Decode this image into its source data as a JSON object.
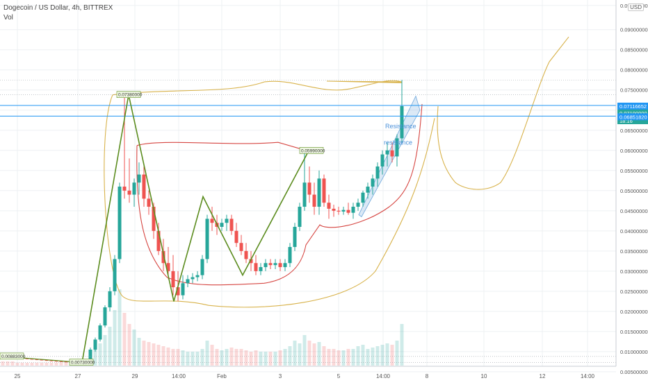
{
  "header": {
    "title": "Dogecoin / US Dollar, 4h, BITTREX",
    "volume_label": "Vol",
    "unit_button": "USD"
  },
  "chart_data": {
    "type": "candlestick",
    "title": "Dogecoin / US Dollar, 4h, BITTREX",
    "volume_label": "Vol",
    "price_range": [
      0.0055,
      0.0965
    ],
    "price_ticks": [
      "0.09600000",
      "0.09000000",
      "0.08500000",
      "0.08000000",
      "0.07500000",
      "0.07000000",
      "0.06500000",
      "0.06000000",
      "0.05500000",
      "0.05000000",
      "0.04500000",
      "0.04000000",
      "0.03500000",
      "0.03000000",
      "0.02500000",
      "0.02000000",
      "0.01500000",
      "0.01000000",
      "0.00500000"
    ],
    "time_ticks": [
      "25",
      "27",
      "29",
      "14:00",
      "Feb",
      "3",
      "5",
      "14:00",
      "8",
      "10",
      "12",
      "14:00"
    ],
    "grid": true,
    "horizontal_lines": [
      {
        "value": 0.07116652,
        "label": "0.07116652",
        "color": "#2196f3"
      },
      {
        "value": 0.0685182,
        "label": "0.06851820",
        "color": "#2196f3"
      }
    ],
    "price_labels": [
      {
        "text": "0.07116652",
        "color": "#2196f3"
      },
      {
        "text": "0.07100000",
        "color": "#26a69a"
      },
      {
        "text": "18:16",
        "color": "#26a69a"
      },
      {
        "text": "0.06851820",
        "color": "#2196f3"
      }
    ],
    "chart_annotations": [
      {
        "text": "0.00883000",
        "value": 0.00883
      },
      {
        "text": "0.00730000",
        "value": 0.0073
      },
      {
        "text": "0.07380000",
        "value": 0.0738
      },
      {
        "text": "0.05990000",
        "value": 0.0599
      }
    ],
    "channel_labels": [
      "Resistance",
      "resistance"
    ],
    "colors": {
      "up": "#26a69a",
      "down": "#ef5350",
      "zigzag": "#5b8c1e",
      "outer_curve": "#d8b24a",
      "inner_curve": "#d64541",
      "channel": "#6fa8dc"
    },
    "candles": [
      {
        "o": 0.0088,
        "h": 0.0089,
        "l": 0.0086,
        "c": 0.0087
      },
      {
        "o": 0.0087,
        "h": 0.0088,
        "l": 0.0085,
        "c": 0.0086
      },
      {
        "o": 0.0086,
        "h": 0.0087,
        "l": 0.0084,
        "c": 0.0085
      },
      {
        "o": 0.0085,
        "h": 0.0086,
        "l": 0.0083,
        "c": 0.0084
      },
      {
        "o": 0.0084,
        "h": 0.0085,
        "l": 0.0082,
        "c": 0.0083
      },
      {
        "o": 0.0083,
        "h": 0.0084,
        "l": 0.0081,
        "c": 0.0082
      },
      {
        "o": 0.0082,
        "h": 0.0083,
        "l": 0.008,
        "c": 0.0081
      },
      {
        "o": 0.0081,
        "h": 0.0082,
        "l": 0.0079,
        "c": 0.008
      },
      {
        "o": 0.008,
        "h": 0.0081,
        "l": 0.0078,
        "c": 0.0079
      },
      {
        "o": 0.0079,
        "h": 0.008,
        "l": 0.0077,
        "c": 0.0078
      },
      {
        "o": 0.0078,
        "h": 0.0079,
        "l": 0.0076,
        "c": 0.0077
      },
      {
        "o": 0.0077,
        "h": 0.0078,
        "l": 0.0075,
        "c": 0.0076
      },
      {
        "o": 0.0076,
        "h": 0.0077,
        "l": 0.0074,
        "c": 0.0075
      },
      {
        "o": 0.0075,
        "h": 0.0076,
        "l": 0.0073,
        "c": 0.0074
      },
      {
        "o": 0.0074,
        "h": 0.0075,
        "l": 0.0073,
        "c": 0.0074
      },
      {
        "o": 0.0074,
        "h": 0.0076,
        "l": 0.0073,
        "c": 0.0075
      },
      {
        "o": 0.0075,
        "h": 0.0078,
        "l": 0.0074,
        "c": 0.0077
      },
      {
        "o": 0.0077,
        "h": 0.008,
        "l": 0.0076,
        "c": 0.0079
      },
      {
        "o": 0.0079,
        "h": 0.011,
        "l": 0.0078,
        "c": 0.0105
      },
      {
        "o": 0.0105,
        "h": 0.0135,
        "l": 0.01,
        "c": 0.013
      },
      {
        "o": 0.013,
        "h": 0.017,
        "l": 0.0125,
        "c": 0.0165
      },
      {
        "o": 0.0165,
        "h": 0.0215,
        "l": 0.016,
        "c": 0.021
      },
      {
        "o": 0.021,
        "h": 0.026,
        "l": 0.02,
        "c": 0.025
      },
      {
        "o": 0.025,
        "h": 0.034,
        "l": 0.024,
        "c": 0.033
      },
      {
        "o": 0.033,
        "h": 0.052,
        "l": 0.032,
        "c": 0.051
      },
      {
        "o": 0.051,
        "h": 0.0738,
        "l": 0.048,
        "c": 0.05
      },
      {
        "o": 0.05,
        "h": 0.058,
        "l": 0.047,
        "c": 0.049
      },
      {
        "o": 0.049,
        "h": 0.053,
        "l": 0.046,
        "c": 0.052
      },
      {
        "o": 0.052,
        "h": 0.057,
        "l": 0.049,
        "c": 0.054
      },
      {
        "o": 0.054,
        "h": 0.056,
        "l": 0.046,
        "c": 0.048
      },
      {
        "o": 0.048,
        "h": 0.05,
        "l": 0.044,
        "c": 0.046
      },
      {
        "o": 0.046,
        "h": 0.047,
        "l": 0.038,
        "c": 0.04
      },
      {
        "o": 0.04,
        "h": 0.042,
        "l": 0.034,
        "c": 0.035
      },
      {
        "o": 0.035,
        "h": 0.038,
        "l": 0.03,
        "c": 0.032
      },
      {
        "o": 0.032,
        "h": 0.036,
        "l": 0.028,
        "c": 0.03
      },
      {
        "o": 0.03,
        "h": 0.034,
        "l": 0.024,
        "c": 0.026
      },
      {
        "o": 0.026,
        "h": 0.03,
        "l": 0.0225,
        "c": 0.024
      },
      {
        "o": 0.024,
        "h": 0.029,
        "l": 0.023,
        "c": 0.027
      },
      {
        "o": 0.027,
        "h": 0.029,
        "l": 0.026,
        "c": 0.028
      },
      {
        "o": 0.028,
        "h": 0.0295,
        "l": 0.027,
        "c": 0.0285
      },
      {
        "o": 0.0285,
        "h": 0.03,
        "l": 0.0275,
        "c": 0.029
      },
      {
        "o": 0.029,
        "h": 0.034,
        "l": 0.028,
        "c": 0.033
      },
      {
        "o": 0.033,
        "h": 0.044,
        "l": 0.032,
        "c": 0.043
      },
      {
        "o": 0.043,
        "h": 0.046,
        "l": 0.04,
        "c": 0.042
      },
      {
        "o": 0.042,
        "h": 0.044,
        "l": 0.039,
        "c": 0.041
      },
      {
        "o": 0.041,
        "h": 0.043,
        "l": 0.04,
        "c": 0.042
      },
      {
        "o": 0.042,
        "h": 0.044,
        "l": 0.04,
        "c": 0.043
      },
      {
        "o": 0.043,
        "h": 0.044,
        "l": 0.039,
        "c": 0.04
      },
      {
        "o": 0.04,
        "h": 0.042,
        "l": 0.036,
        "c": 0.037
      },
      {
        "o": 0.037,
        "h": 0.039,
        "l": 0.034,
        "c": 0.035
      },
      {
        "o": 0.035,
        "h": 0.037,
        "l": 0.032,
        "c": 0.033
      },
      {
        "o": 0.033,
        "h": 0.035,
        "l": 0.03,
        "c": 0.032
      },
      {
        "o": 0.032,
        "h": 0.034,
        "l": 0.029,
        "c": 0.03
      },
      {
        "o": 0.03,
        "h": 0.032,
        "l": 0.029,
        "c": 0.031
      },
      {
        "o": 0.031,
        "h": 0.033,
        "l": 0.03,
        "c": 0.032
      },
      {
        "o": 0.032,
        "h": 0.033,
        "l": 0.0305,
        "c": 0.0315
      },
      {
        "o": 0.0315,
        "h": 0.033,
        "l": 0.0305,
        "c": 0.032
      },
      {
        "o": 0.032,
        "h": 0.033,
        "l": 0.03,
        "c": 0.031
      },
      {
        "o": 0.031,
        "h": 0.033,
        "l": 0.03,
        "c": 0.032
      },
      {
        "o": 0.032,
        "h": 0.037,
        "l": 0.031,
        "c": 0.036
      },
      {
        "o": 0.036,
        "h": 0.042,
        "l": 0.035,
        "c": 0.041
      },
      {
        "o": 0.041,
        "h": 0.047,
        "l": 0.04,
        "c": 0.046
      },
      {
        "o": 0.046,
        "h": 0.0599,
        "l": 0.045,
        "c": 0.052
      },
      {
        "o": 0.052,
        "h": 0.056,
        "l": 0.047,
        "c": 0.049
      },
      {
        "o": 0.049,
        "h": 0.052,
        "l": 0.044,
        "c": 0.046
      },
      {
        "o": 0.046,
        "h": 0.055,
        "l": 0.044,
        "c": 0.053
      },
      {
        "o": 0.053,
        "h": 0.054,
        "l": 0.046,
        "c": 0.047
      },
      {
        "o": 0.047,
        "h": 0.049,
        "l": 0.043,
        "c": 0.0455
      },
      {
        "o": 0.0455,
        "h": 0.0465,
        "l": 0.0435,
        "c": 0.045
      },
      {
        "o": 0.045,
        "h": 0.046,
        "l": 0.044,
        "c": 0.0448
      },
      {
        "o": 0.0448,
        "h": 0.046,
        "l": 0.044,
        "c": 0.0452
      },
      {
        "o": 0.0452,
        "h": 0.047,
        "l": 0.044,
        "c": 0.0445
      },
      {
        "o": 0.0445,
        "h": 0.047,
        "l": 0.043,
        "c": 0.046
      },
      {
        "o": 0.046,
        "h": 0.048,
        "l": 0.045,
        "c": 0.047
      },
      {
        "o": 0.047,
        "h": 0.05,
        "l": 0.046,
        "c": 0.0495
      },
      {
        "o": 0.0495,
        "h": 0.052,
        "l": 0.048,
        "c": 0.051
      },
      {
        "o": 0.051,
        "h": 0.054,
        "l": 0.049,
        "c": 0.053
      },
      {
        "o": 0.053,
        "h": 0.057,
        "l": 0.051,
        "c": 0.056
      },
      {
        "o": 0.056,
        "h": 0.06,
        "l": 0.054,
        "c": 0.059
      },
      {
        "o": 0.059,
        "h": 0.062,
        "l": 0.056,
        "c": 0.06
      },
      {
        "o": 0.06,
        "h": 0.062,
        "l": 0.057,
        "c": 0.0585
      },
      {
        "o": 0.0585,
        "h": 0.064,
        "l": 0.056,
        "c": 0.063
      },
      {
        "o": 0.063,
        "h": 0.0775,
        "l": 0.062,
        "c": 0.071
      }
    ],
    "volume": [
      3,
      3,
      3,
      2,
      2,
      2,
      2,
      2,
      2,
      2,
      2,
      2,
      2,
      2,
      2,
      3,
      3,
      4,
      8,
      12,
      16,
      22,
      28,
      40,
      55,
      38,
      30,
      26,
      20,
      18,
      17,
      16,
      15,
      14,
      13,
      12,
      12,
      11,
      10,
      10,
      10,
      12,
      18,
      15,
      12,
      11,
      12,
      13,
      12,
      12,
      11,
      10,
      11,
      10,
      10,
      10,
      10,
      11,
      12,
      14,
      18,
      16,
      22,
      18,
      16,
      17,
      14,
      12,
      12,
      11,
      11,
      12,
      12,
      14,
      15,
      12,
      13,
      14,
      15,
      16,
      15,
      18,
      30
    ]
  }
}
